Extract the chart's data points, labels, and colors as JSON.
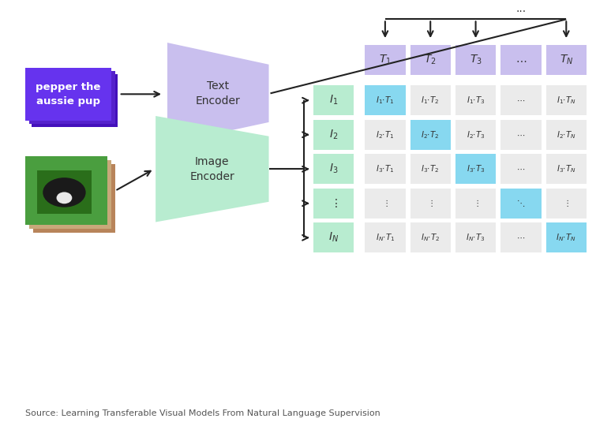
{
  "fig_width": 7.74,
  "fig_height": 5.4,
  "dpi": 100,
  "bg_color": "#ffffff",
  "source_text": "Source: Learning Transferable Visual Models From Natural Language Supervision",
  "text_box_color": "#6633ee",
  "text_box_color2": "#5522cc",
  "text_box_color3": "#4411bb",
  "text_box_label": "pepper the\naussie pup",
  "text_encoder_color": "#c9bfee",
  "text_encoder_label": "Text\nEncoder",
  "image_encoder_color": "#b8ecd0",
  "image_encoder_label": "Image\nEncoder",
  "t_header_color": "#c9bfee",
  "i_col_color": "#b8ecd0",
  "diag_cell_color": "#87d8f0",
  "off_diag_cell_color": "#ebebeb",
  "arrow_color": "#222222",
  "text_color": "#333333",
  "source_color": "#555555"
}
